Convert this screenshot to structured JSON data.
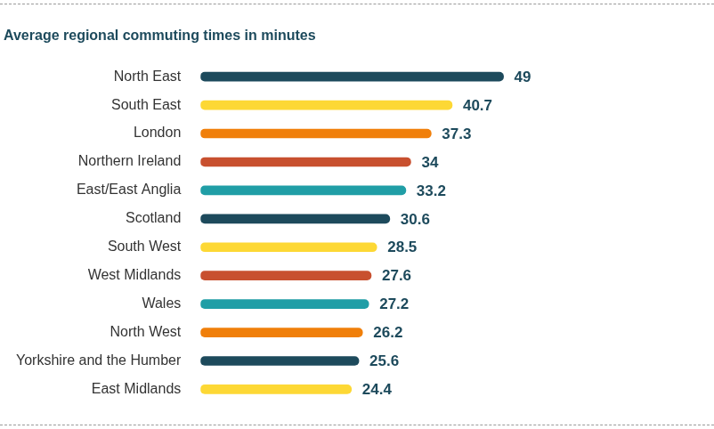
{
  "chart_data": {
    "type": "bar",
    "orientation": "horizontal",
    "title": "Average regional commuting times in minutes",
    "categories": [
      "North East",
      "South East",
      "London",
      "Northern Ireland",
      "East/East Anglia",
      "Scotland",
      "South West",
      "West Midlands",
      "Wales",
      "North West",
      "Yorkshire and the Humber",
      "East Midlands"
    ],
    "values": [
      49,
      40.7,
      37.3,
      34,
      33.2,
      30.6,
      28.5,
      27.6,
      27.2,
      26.2,
      25.6,
      24.4
    ],
    "colors": [
      "#1d4a5c",
      "#fdd835",
      "#f07f0a",
      "#c8502f",
      "#209ea6",
      "#1d4a5c",
      "#fdd835",
      "#c8502f",
      "#209ea6",
      "#f07f0a",
      "#1d4a5c",
      "#fdd835"
    ],
    "xlim": [
      0,
      60
    ],
    "grid": false,
    "data_labels": true,
    "tick_labels": "y"
  }
}
